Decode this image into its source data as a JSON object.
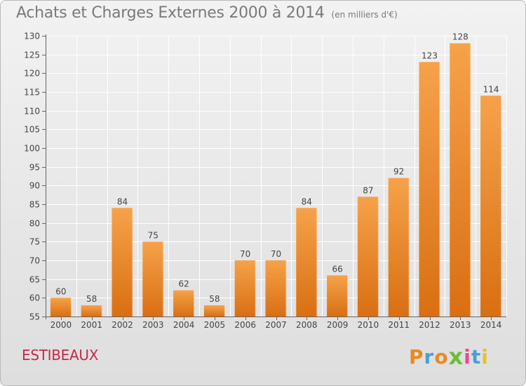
{
  "header": {
    "title": "Achats et Charges Externes 2000 à 2014",
    "subtitle": "(en milliers d'€)"
  },
  "footer": {
    "commune": "ESTIBEAUX",
    "logo": [
      "P",
      "r",
      "o",
      "x",
      "i",
      "t",
      "i"
    ]
  },
  "colors": {
    "bar_top": "#f6a24a",
    "bar_bottom": "#d96f12",
    "commune_text": "#c7284a",
    "axis_text": "#444444"
  },
  "chart_data": {
    "type": "bar",
    "title": "Achats et Charges Externes 2000 à 2014",
    "subtitle": "(en milliers d'€)",
    "xlabel": "",
    "ylabel": "",
    "categories": [
      "2000",
      "2001",
      "2002",
      "2003",
      "2004",
      "2005",
      "2006",
      "2007",
      "2008",
      "2009",
      "2010",
      "2011",
      "2012",
      "2013",
      "2014"
    ],
    "values": [
      60,
      58,
      84,
      75,
      62,
      58,
      70,
      70,
      84,
      66,
      87,
      92,
      123,
      128,
      114
    ],
    "ylim": [
      55,
      130
    ],
    "yticks": [
      55,
      60,
      65,
      70,
      75,
      80,
      85,
      90,
      95,
      100,
      105,
      110,
      115,
      120,
      125,
      130
    ],
    "grid": true,
    "legend": "none"
  }
}
